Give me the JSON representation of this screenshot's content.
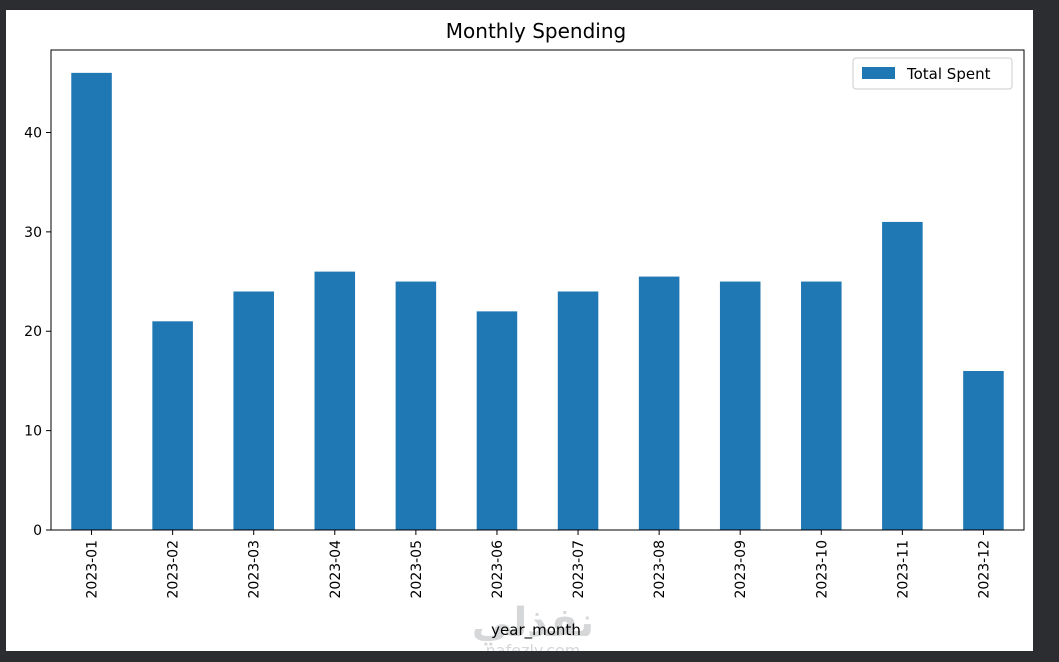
{
  "chart_data": {
    "type": "bar",
    "title": "Monthly Spending",
    "xlabel": "year_month",
    "ylabel": "",
    "categories": [
      "2023-01",
      "2023-02",
      "2023-03",
      "2023-04",
      "2023-05",
      "2023-06",
      "2023-07",
      "2023-08",
      "2023-09",
      "2023-10",
      "2023-11",
      "2023-12"
    ],
    "series": [
      {
        "name": "Total Spent",
        "values": [
          46,
          21,
          24,
          26,
          25,
          22,
          24,
          25.5,
          25,
          25,
          31,
          16
        ],
        "color": "#1f77b4"
      }
    ],
    "ylim": [
      0,
      48.3
    ],
    "yticks": [
      0,
      10,
      20,
      30,
      40
    ],
    "grid": false,
    "legend_position": "upper right"
  },
  "watermark": {
    "text": "نفذلي",
    "subtext": "nafezly.com"
  }
}
